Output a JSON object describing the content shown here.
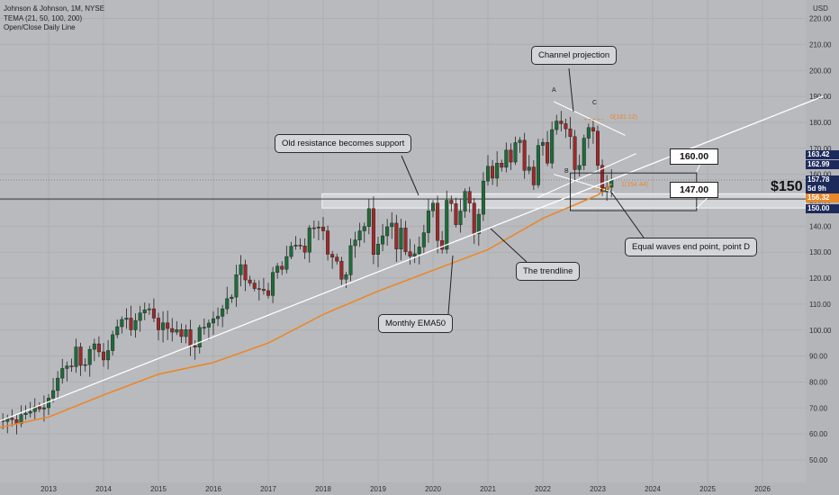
{
  "legend": {
    "symbol": "Johnson & Johnson, 1M, NYSE",
    "indicator": "TEMA (21, 50, 100, 200)",
    "line": "Open/Close Daily Line"
  },
  "currency": "USD",
  "colors": {
    "background": "#b9babe",
    "up": "#1f6b3a",
    "down": "#9c2a2a",
    "ema": "#e8882a",
    "trend": "#ffffff"
  },
  "callouts": {
    "channel": "Channel projection",
    "old_resistance": "Old resistance becomes support",
    "equal_waves": "Equal waves end point, point D",
    "trendline": "The trendline",
    "ema": "Monthly EMA50"
  },
  "price_boxes": {
    "upper": "160.00",
    "lower": "147.00"
  },
  "big_price": "$150",
  "fib_labels": {
    "top": "0(181.12)",
    "bottom": "1(154.44)"
  },
  "points": {
    "A": "A",
    "B": "B",
    "C": "C",
    "D": "D"
  },
  "axis_tags": [
    {
      "value": "163.42",
      "color": "#1d2a5c"
    },
    {
      "value": "162.99",
      "color": "#1d2a5c"
    },
    {
      "value": "157.78",
      "color": "#1d2a5c"
    },
    {
      "value": "5d 9h",
      "color": "#1d2a5c"
    },
    {
      "value": "156.32",
      "color": "#e8882a"
    },
    {
      "value": "150.00",
      "color": "#1d2a5c"
    }
  ],
  "chart_data": {
    "type": "candlestick",
    "ylabel": "USD",
    "ylim": [
      45,
      225
    ],
    "y_ticks": [
      50,
      60,
      70,
      80,
      90,
      100,
      110,
      120,
      130,
      140,
      150,
      160,
      170,
      180,
      190,
      200,
      210,
      220
    ],
    "x_ticks": [
      "2013",
      "2014",
      "2015",
      "2016",
      "2017",
      "2018",
      "2019",
      "2020",
      "2021",
      "2022",
      "2023",
      "2024",
      "2025",
      "2026"
    ],
    "close_monthly": [
      [
        2012,
        [
          64.5,
          65.2,
          64.8,
          66.1,
          65.5,
          63.9,
          67.4,
          68.0,
          68.6,
          70.5,
          69.6,
          70.1
        ]
      ],
      [
        2013,
        [
          73.8,
          76.7,
          81.5,
          85.2,
          86.2,
          85.9,
          93.5,
          86.4,
          86.7,
          92.6,
          94.7,
          91.6
        ]
      ],
      [
        2014,
        [
          88.5,
          92.1,
          98.2,
          101.3,
          104.1,
          104.6,
          100.1,
          103.7,
          106.6,
          107.8,
          108.2,
          104.6
        ]
      ],
      [
        2015,
        [
          100.1,
          102.8,
          100.6,
          99.2,
          100.2,
          97.5,
          100.2,
          94.0,
          93.4,
          101.0,
          101.1,
          102.7
        ]
      ],
      [
        2016,
        [
          104.4,
          105.3,
          108.2,
          112.1,
          112.7,
          121.3,
          125.2,
          119.3,
          118.1,
          116.0,
          115.7,
          115.2
        ]
      ],
      [
        2017,
        [
          113.3,
          122.2,
          124.6,
          123.4,
          128.3,
          132.3,
          132.7,
          132.4,
          130.0,
          139.4,
          139.3,
          139.7
        ]
      ],
      [
        2018,
        [
          138.2,
          129.2,
          128.1,
          126.5,
          119.6,
          121.3,
          132.5,
          134.7,
          138.2,
          139.9,
          146.8,
          129.1
        ]
      ],
      [
        2019,
        [
          133.1,
          136.3,
          139.8,
          141.2,
          131.2,
          139.3,
          130.2,
          128.4,
          129.4,
          132.0,
          137.5,
          145.9
        ]
      ],
      [
        2020,
        [
          148.9,
          134.5,
          131.1,
          150.0,
          148.7,
          140.6,
          145.8,
          153.4,
          148.9,
          137.1,
          144.6,
          157.4
        ]
      ],
      [
        2021,
        [
          163.1,
          158.5,
          164.3,
          162.7,
          169.3,
          164.7,
          172.2,
          173.1,
          161.5,
          162.8,
          155.9,
          171.1
        ]
      ],
      [
        2022,
        [
          172.3,
          164.3,
          177.2,
          180.5,
          179.5,
          177.5,
          174.5,
          161.8,
          163.4,
          173.9,
          178.0,
          176.6
        ]
      ],
      [
        2023,
        [
          163.4,
          153.3,
          155.0,
          157.8
        ]
      ]
    ],
    "ema50_monthly": [
      [
        2012,
        62.0
      ],
      [
        2013,
        66.5
      ],
      [
        2014,
        75.0
      ],
      [
        2015,
        83.0
      ],
      [
        2016,
        87.5
      ],
      [
        2017,
        95.0
      ],
      [
        2018,
        106.0
      ],
      [
        2019,
        115.0
      ],
      [
        2020,
        123.0
      ],
      [
        2021,
        131.0
      ],
      [
        2022,
        143.0
      ],
      [
        2023,
        152.0
      ],
      [
        2023.25,
        156.3
      ]
    ],
    "trendline": [
      [
        2012.0,
        64.0
      ],
      [
        2027.1,
        190.0
      ]
    ],
    "channel_upper": [
      [
        2022.2,
        188.0
      ],
      [
        2023.5,
        175.0
      ]
    ],
    "channel_lower": [
      [
        2022.2,
        160.0
      ],
      [
        2023.3,
        153.0
      ]
    ],
    "support_zone": [
      147,
      150
    ],
    "target_box": [
      147,
      160
    ]
  }
}
